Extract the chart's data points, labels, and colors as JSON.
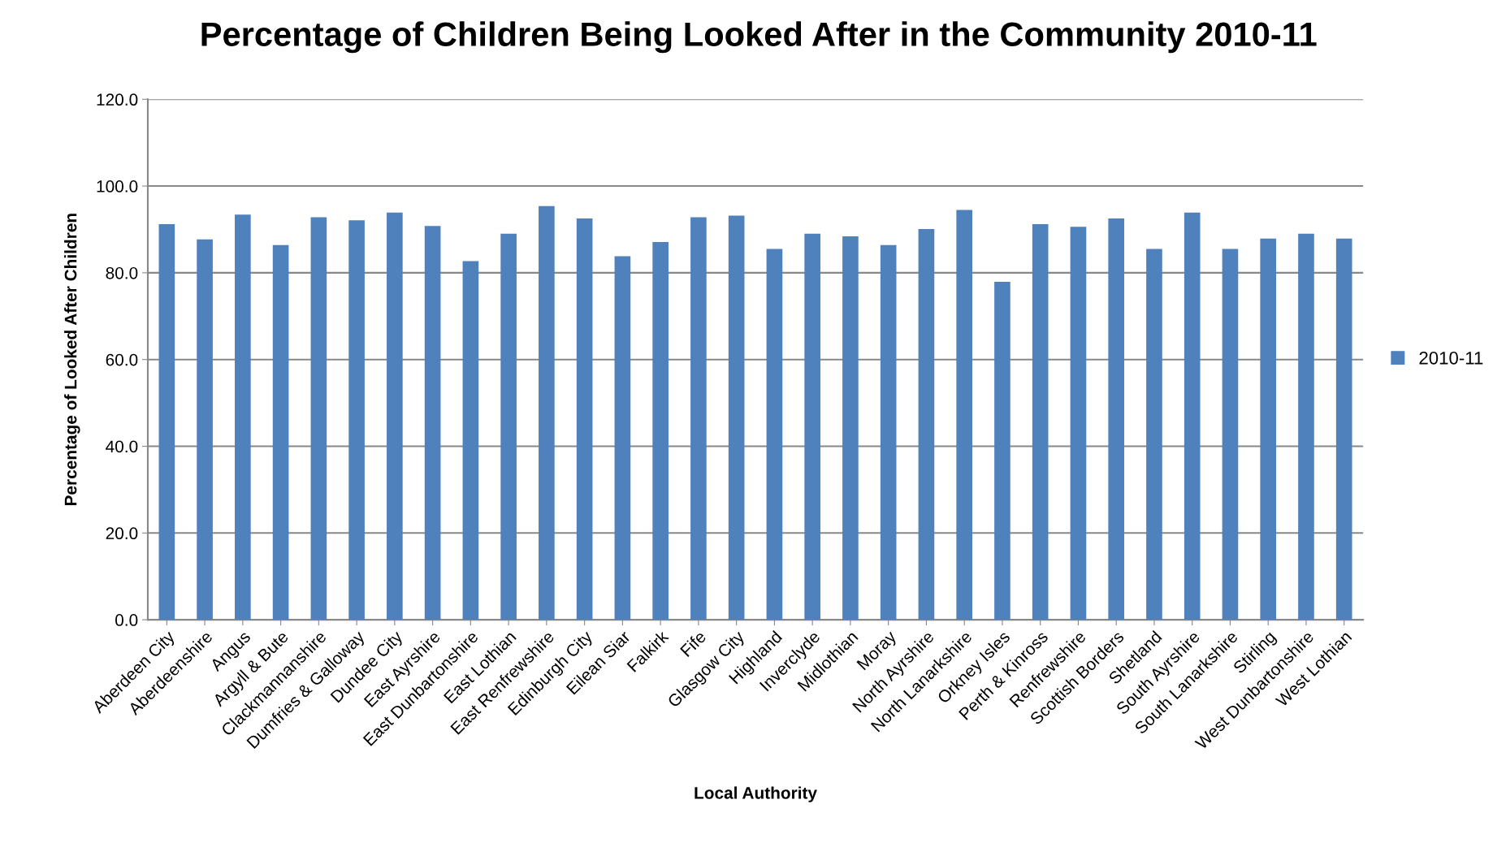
{
  "chart_data": {
    "type": "bar",
    "title": "Percentage of Children Being Looked After in the Community 2010-11",
    "xlabel": "Local Authority",
    "ylabel": "Percentage of Looked After Children",
    "categories": [
      "Aberdeen City",
      "Aberdeenshire",
      "Angus",
      "Argyll & Bute",
      "Clackmannanshire",
      "Dumfries & Galloway",
      "Dundee City",
      "East Ayrshire",
      "East Dunbartonshire",
      "East Lothian",
      "East Renfrewshire",
      "Edinburgh City",
      "Eilean Siar",
      "Falkirk",
      "Fife",
      "Glasgow City",
      "Highland",
      "Inverclyde",
      "Midlothian",
      "Moray",
      "North Ayrshire",
      "North Lanarkshire",
      "Orkney Isles",
      "Perth & Kinross",
      "Renfrewshire",
      "Scottish Borders",
      "Shetland",
      "South Ayrshire",
      "South Lanarkshire",
      "Stirling",
      "West Dunbartonshire",
      "West Lothian"
    ],
    "series": [
      {
        "name": "2010-11",
        "color": "#4f81bd",
        "values": [
          91.2,
          87.7,
          93.4,
          86.4,
          92.8,
          92.1,
          93.9,
          90.8,
          82.7,
          89.0,
          95.4,
          92.5,
          83.8,
          87.1,
          92.8,
          93.2,
          85.5,
          89.0,
          88.4,
          86.4,
          90.1,
          94.5,
          77.9,
          91.2,
          90.6,
          92.5,
          85.5,
          93.9,
          85.5,
          87.9,
          89.0,
          87.9
        ]
      }
    ],
    "ylim": [
      0,
      120
    ],
    "yticks": [
      {
        "value": 0,
        "label": "0.0"
      },
      {
        "value": 20,
        "label": "20.0"
      },
      {
        "value": 40,
        "label": "40.0"
      },
      {
        "value": 60,
        "label": "60.0"
      },
      {
        "value": 80,
        "label": "80.0"
      },
      {
        "value": 100,
        "label": "100.0"
      },
      {
        "value": 120,
        "label": "120.0"
      }
    ],
    "grid": "y",
    "legend": "right"
  }
}
